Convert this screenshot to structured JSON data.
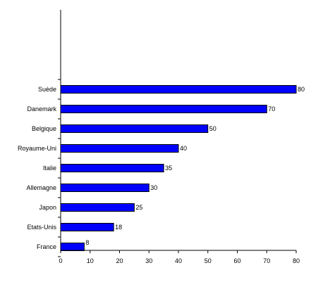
{
  "chart_data": {
    "type": "bar",
    "orientation": "horizontal",
    "categories": [
      "France",
      "Etats-Unis",
      "Japon",
      "Allemagne",
      "Italie",
      "Royaume-Uni",
      "Belgique",
      "Danemark",
      "Suède"
    ],
    "values": [
      8,
      18,
      25,
      30,
      35,
      40,
      50,
      70,
      80
    ],
    "data_labels": [
      "8",
      "18",
      "25",
      "30",
      "35",
      "40",
      "50",
      "70",
      "80"
    ],
    "xlim": [
      0,
      80
    ],
    "x_ticks": [
      0,
      10,
      20,
      30,
      40,
      50,
      60,
      70,
      80
    ],
    "x_tick_labels": [
      "0",
      "10",
      "20",
      "30",
      "40",
      "50",
      "60",
      "70",
      "80"
    ],
    "title": "",
    "xlabel": "",
    "ylabel": "",
    "grid": false,
    "legend": "none",
    "bar_color": "#0000FF",
    "bar_edge_color": "#000000"
  }
}
